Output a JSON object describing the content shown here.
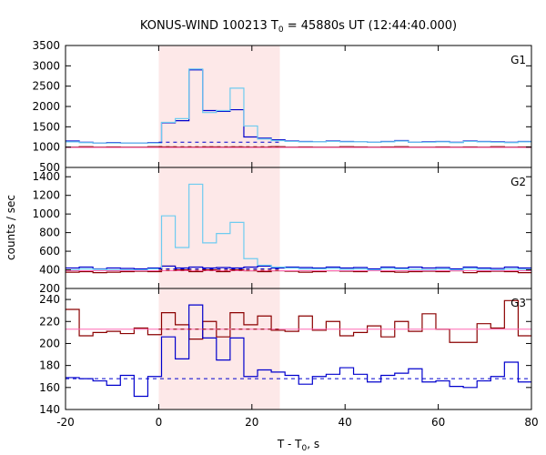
{
  "title": {
    "pre": "KONUS-WIND 100213 T",
    "sub": "0",
    "post": " = 45880s UT (12:44:40.000)"
  },
  "xlabel": {
    "pre": "T - T",
    "sub": "0",
    "post": ", s"
  },
  "ylabel": "counts / sec",
  "colors": {
    "red": "#8b0000",
    "blue": "#0000cd",
    "cyan": "#6ecbf0",
    "pink": "#ff69b4",
    "shade": "#fde8e8",
    "axis": "#000000"
  },
  "chart_data": {
    "type": "line",
    "xlim": [
      -20,
      80
    ],
    "xticks": [
      -20,
      0,
      20,
      40,
      60,
      80
    ],
    "shaded_interval": [
      0,
      26
    ],
    "bin_width": 2.944,
    "panels": [
      {
        "label": "G1",
        "ylim": [
          500,
          3500
        ],
        "yticks": [
          500,
          1000,
          1500,
          2000,
          2500,
          3000,
          3500
        ],
        "series": [
          {
            "color": "red",
            "style": "step",
            "start": -20,
            "values": [
              1000,
              1010,
              1000,
              1005,
              1000,
              1000,
              1010,
              1005,
              1000,
              1000,
              1005,
              1000,
              1005,
              1000,
              1000,
              1010,
              1000,
              1005,
              1000,
              1000,
              1010,
              1005,
              1000,
              1005,
              1010,
              1000,
              1000,
              1005,
              1000,
              1005,
              1000,
              1010,
              1000,
              1005,
              1000
            ]
          },
          {
            "color": "blue",
            "style": "step",
            "start": -20,
            "values": [
              1150,
              1120,
              1100,
              1110,
              1100,
              1100,
              1110,
              1600,
              1650,
              2900,
              1900,
              1880,
              1920,
              1250,
              1220,
              1180,
              1150,
              1140,
              1130,
              1150,
              1140,
              1130,
              1120,
              1140,
              1160,
              1120,
              1130,
              1140,
              1120,
              1150,
              1140,
              1130,
              1120,
              1140,
              1120
            ]
          },
          {
            "color": "cyan",
            "style": "step",
            "start": -20,
            "values": [
              1130,
              1110,
              1100,
              1100,
              1100,
              1100,
              1100,
              1610,
              1700,
              2920,
              1850,
              1900,
              2450,
              1520,
              1200,
              1160,
              1140,
              1130,
              1130,
              1140,
              1130,
              1130,
              1120,
              1130,
              1150,
              1120,
              1120,
              1130,
              1110,
              1140,
              1130,
              1120,
              1110,
              1130,
              1110
            ]
          },
          {
            "color": "pink",
            "style": "hline",
            "value": 990,
            "x": [
              -20,
              80
            ]
          },
          {
            "color": "blue",
            "style": "dashed",
            "value": 1120,
            "x": [
              0,
              26
            ]
          },
          {
            "color": "red",
            "style": "dashed",
            "value": 1010,
            "x": [
              0,
              26
            ]
          }
        ]
      },
      {
        "label": "G2",
        "ylim": [
          200,
          1500
        ],
        "yticks": [
          200,
          400,
          600,
          800,
          1000,
          1200,
          1400
        ],
        "series": [
          {
            "color": "red",
            "style": "step",
            "start": -20,
            "values": [
              375,
              380,
              370,
              375,
              380,
              385,
              380,
              440,
              400,
              380,
              400,
              380,
              400,
              390,
              380,
              390,
              385,
              375,
              380,
              390,
              385,
              380,
              395,
              380,
              375,
              380,
              385,
              380,
              390,
              370,
              380,
              385,
              380,
              370,
              365
            ]
          },
          {
            "color": "blue",
            "style": "step",
            "start": -20,
            "values": [
              420,
              430,
              410,
              420,
              415,
              410,
              420,
              440,
              420,
              430,
              420,
              425,
              420,
              430,
              440,
              420,
              430,
              425,
              420,
              430,
              420,
              425,
              410,
              430,
              420,
              430,
              420,
              425,
              410,
              430,
              420,
              415,
              430,
              420,
              425
            ]
          },
          {
            "color": "cyan",
            "style": "step",
            "start": -20,
            "values": [
              400,
              410,
              405,
              400,
              400,
              400,
              410,
              980,
              640,
              1320,
              690,
              790,
              910,
              520,
              450,
              430,
              420,
              410,
              410,
              415,
              405,
              410,
              400,
              415,
              410,
              405,
              400,
              410,
              400,
              415,
              405,
              400,
              410,
              405,
              400
            ]
          },
          {
            "color": "pink",
            "style": "hline",
            "value": 390,
            "x": [
              -20,
              80
            ]
          },
          {
            "color": "blue",
            "style": "dashed",
            "value": 410,
            "x": [
              0,
              26
            ]
          },
          {
            "color": "red",
            "style": "dashed",
            "value": 395,
            "x": [
              0,
              26
            ]
          }
        ]
      },
      {
        "label": "G3",
        "ylim": [
          140,
          250
        ],
        "yticks": [
          140,
          160,
          180,
          200,
          220,
          240
        ],
        "series": [
          {
            "color": "red",
            "style": "step",
            "start": -20,
            "values": [
              231,
              207,
              210,
              211,
              209,
              214,
              208,
              228,
              217,
              204,
              220,
              206,
              228,
              217,
              225,
              212,
              211,
              225,
              212,
              220,
              207,
              210,
              216,
              206,
              220,
              211,
              227,
              213,
              201,
              201,
              218,
              214,
              239,
              207,
              212
            ]
          },
          {
            "color": "blue",
            "style": "step",
            "start": -20,
            "values": [
              169,
              168,
              166,
              162,
              171,
              152,
              170,
              206,
              186,
              235,
              205,
              185,
              205,
              170,
              176,
              174,
              171,
              163,
              170,
              172,
              178,
              172,
              165,
              171,
              173,
              177,
              165,
              166,
              161,
              160,
              166,
              170,
              183,
              165,
              180
            ]
          },
          {
            "color": "pink",
            "style": "hline",
            "value": 213,
            "x": [
              -20,
              80
            ]
          },
          {
            "color": "blue",
            "style": "dashed",
            "value": 168,
            "x": [
              -20,
              80
            ]
          },
          {
            "color": "red",
            "style": "dashed",
            "value": 213,
            "x": [
              0,
              26
            ]
          }
        ]
      }
    ]
  }
}
